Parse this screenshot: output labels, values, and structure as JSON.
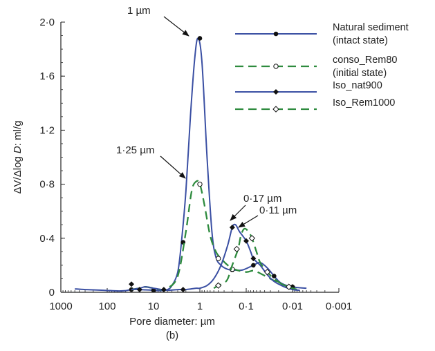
{
  "chart_data": {
    "type": "line",
    "xlabel": "Pore diameter: µm",
    "ylabel_parts": [
      "ΔV/Δlog ",
      "D",
      ": ml/g"
    ],
    "subtitle": "(b)",
    "x_scale": "log-reversed",
    "xlim": [
      1000,
      0.001
    ],
    "ylim": [
      0,
      2.0
    ],
    "x_ticks": [
      1000,
      100,
      10,
      1,
      0.1,
      0.01,
      0.001
    ],
    "x_tick_labels": [
      "1000",
      "100",
      "10",
      "1",
      "0·1",
      "0·01",
      "0·001"
    ],
    "y_ticks": [
      0,
      0.4,
      0.8,
      1.2,
      1.6,
      2.0
    ],
    "y_tick_labels": [
      "0",
      "0·4",
      "0·8",
      "1·2",
      "1·6",
      "2·0"
    ],
    "grid": false,
    "legend_position": "top-right",
    "series": [
      {
        "name": "Natural sediment\n(intact state)",
        "color": "#3a4fa3",
        "dash": "solid",
        "marker": "circle-filled-large",
        "line_points": [
          [
            500,
            0.025
          ],
          [
            300,
            0.02
          ],
          [
            120,
            0.015
          ],
          [
            60,
            0.01
          ],
          [
            40,
            0.012
          ],
          [
            30,
            0.02
          ],
          [
            20,
            0.02
          ],
          [
            15,
            0.018
          ],
          [
            10,
            0.015
          ],
          [
            7,
            0.012
          ],
          [
            5,
            0.02
          ],
          [
            4,
            0.05
          ],
          [
            3,
            0.15
          ],
          [
            2.5,
            0.37
          ],
          [
            2,
            0.75
          ],
          [
            1.6,
            1.3
          ],
          [
            1.3,
            1.72
          ],
          [
            1.1,
            1.88
          ],
          [
            0.9,
            1.7
          ],
          [
            0.7,
            1.0
          ],
          [
            0.55,
            0.45
          ],
          [
            0.45,
            0.26
          ],
          [
            0.35,
            0.2
          ],
          [
            0.25,
            0.17
          ],
          [
            0.18,
            0.165
          ],
          [
            0.12,
            0.165
          ],
          [
            0.07,
            0.2
          ],
          [
            0.05,
            0.22
          ],
          [
            0.035,
            0.18
          ],
          [
            0.025,
            0.12
          ],
          [
            0.018,
            0.07
          ],
          [
            0.012,
            0.045
          ],
          [
            0.008,
            0.035
          ],
          [
            0.005,
            0.03
          ]
        ],
        "marker_points": [
          [
            30,
            0.02
          ],
          [
            10,
            0.015
          ],
          [
            2.3,
            0.37
          ],
          [
            1,
            1.88
          ],
          [
            0.2,
            0.165
          ],
          [
            0.07,
            0.2
          ],
          [
            0.025,
            0.12
          ],
          [
            0.01,
            0.04
          ]
        ]
      },
      {
        "name": "conso_Rem80\n(initial state)",
        "color": "#2e8b3e",
        "dash": "dashed",
        "marker": "circle-open",
        "line_points": [
          [
            30,
            0.02
          ],
          [
            20,
            0.03
          ],
          [
            15,
            0.04
          ],
          [
            10,
            0.03
          ],
          [
            7,
            0.02
          ],
          [
            5,
            0.03
          ],
          [
            3,
            0.12
          ],
          [
            2,
            0.45
          ],
          [
            1.5,
            0.75
          ],
          [
            1.2,
            0.82
          ],
          [
            1,
            0.8
          ],
          [
            0.8,
            0.65
          ],
          [
            0.6,
            0.42
          ],
          [
            0.45,
            0.3
          ],
          [
            0.35,
            0.25
          ],
          [
            0.25,
            0.2
          ],
          [
            0.18,
            0.17
          ],
          [
            0.1,
            0.15
          ],
          [
            0.07,
            0.16
          ],
          [
            0.05,
            0.14
          ],
          [
            0.03,
            0.1
          ],
          [
            0.02,
            0.07
          ],
          [
            0.012,
            0.04
          ],
          [
            0.008,
            0.02
          ]
        ],
        "marker_points": [
          [
            1,
            0.8
          ],
          [
            0.4,
            0.25
          ],
          [
            0.2,
            0.17
          ]
        ]
      },
      {
        "name": "Iso_nat900",
        "color": "#3a4fa3",
        "dash": "solid",
        "marker": "diamond-filled",
        "line_points": [
          [
            30,
            0.02
          ],
          [
            20,
            0.03
          ],
          [
            15,
            0.04
          ],
          [
            10,
            0.03
          ],
          [
            5,
            0.015
          ],
          [
            3,
            0.02
          ],
          [
            2,
            0.02
          ],
          [
            1.2,
            0.03
          ],
          [
            1,
            0.03
          ],
          [
            0.7,
            0.05
          ],
          [
            0.5,
            0.1
          ],
          [
            0.35,
            0.2
          ],
          [
            0.25,
            0.35
          ],
          [
            0.2,
            0.48
          ],
          [
            0.17,
            0.5
          ],
          [
            0.14,
            0.45
          ],
          [
            0.1,
            0.38
          ],
          [
            0.08,
            0.3
          ],
          [
            0.07,
            0.25
          ],
          [
            0.05,
            0.2
          ],
          [
            0.035,
            0.13
          ],
          [
            0.025,
            0.08
          ],
          [
            0.015,
            0.04
          ],
          [
            0.01,
            0.02
          ],
          [
            0.007,
            0.015
          ]
        ],
        "marker_points": [
          [
            30,
            0.06
          ],
          [
            20,
            0.02
          ],
          [
            6,
            0.02
          ],
          [
            2.3,
            0.02
          ],
          [
            0.2,
            0.48
          ],
          [
            0.1,
            0.38
          ],
          [
            0.07,
            0.25
          ],
          [
            0.01,
            0.04
          ]
        ]
      },
      {
        "name": "Iso_Rem1000",
        "color": "#2e8b3e",
        "dash": "dashed",
        "marker": "diamond-open",
        "line_points": [
          [
            0.5,
            0.03
          ],
          [
            0.4,
            0.05
          ],
          [
            0.3,
            0.07
          ],
          [
            0.25,
            0.1
          ],
          [
            0.2,
            0.2
          ],
          [
            0.15,
            0.32
          ],
          [
            0.13,
            0.42
          ],
          [
            0.11,
            0.47
          ],
          [
            0.09,
            0.45
          ],
          [
            0.075,
            0.4
          ],
          [
            0.06,
            0.3
          ],
          [
            0.05,
            0.22
          ],
          [
            0.035,
            0.15
          ],
          [
            0.025,
            0.1
          ],
          [
            0.015,
            0.05
          ],
          [
            0.01,
            0.03
          ],
          [
            0.008,
            0.02
          ]
        ],
        "marker_points": [
          [
            0.4,
            0.05
          ],
          [
            0.16,
            0.32
          ],
          [
            0.075,
            0.4
          ],
          [
            0.035,
            0.15
          ],
          [
            0.012,
            0.04
          ]
        ]
      }
    ],
    "annotations": [
      {
        "text": "1 µm",
        "x": 1,
        "y": 1.88
      },
      {
        "text": "1·25 µm",
        "x": 1.2,
        "y": 0.82
      },
      {
        "text": "0·17 µm",
        "x": 0.2,
        "y": 0.5
      },
      {
        "text": "0·11 µm",
        "x": 0.11,
        "y": 0.47
      }
    ]
  }
}
